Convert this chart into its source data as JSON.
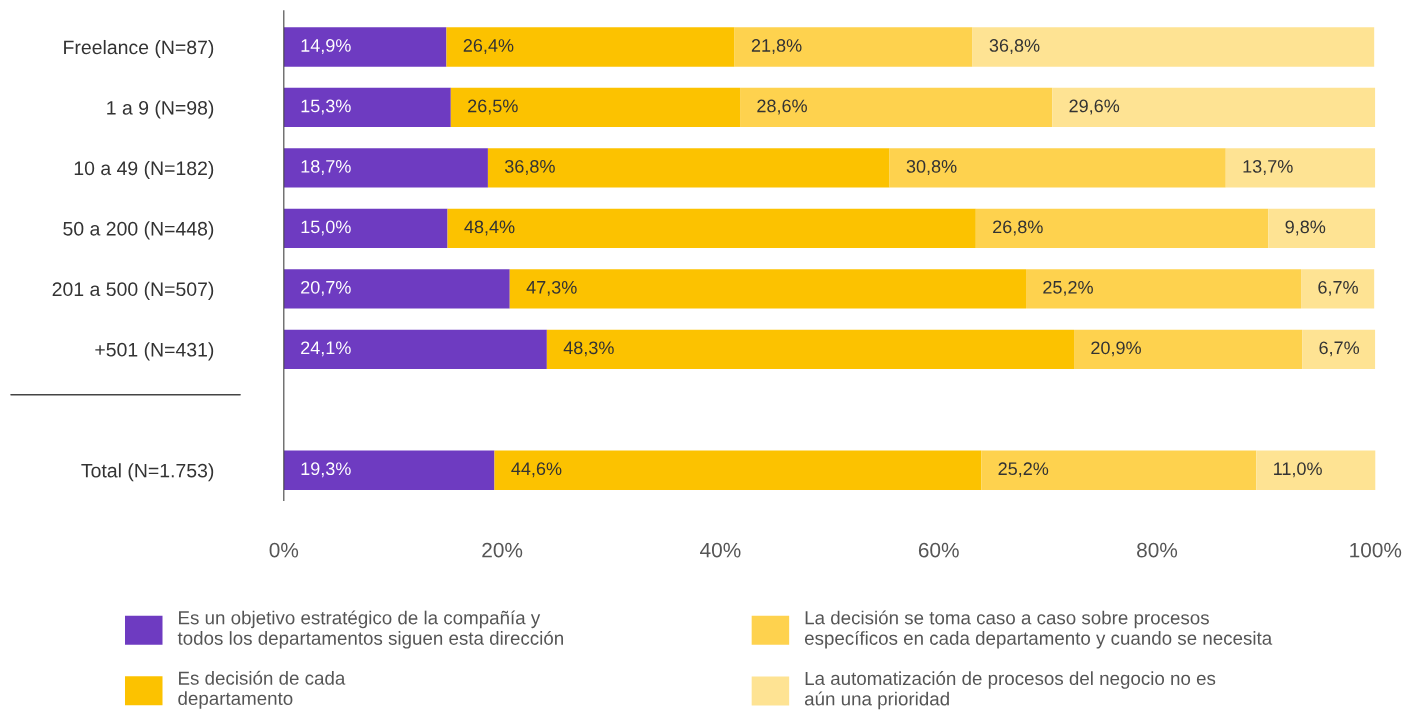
{
  "chart_data": {
    "type": "bar",
    "orientation": "horizontal",
    "stacked": true,
    "categories": [
      "Freelance (N=87)",
      "1 a 9 (N=98)",
      "10 a 49 (N=182)",
      "50 a 200 (N=448)",
      "201 a 500 (N=507)",
      "+501 (N=431)",
      null,
      "Total (N=1.753)"
    ],
    "series": [
      {
        "name": "Es un objetivo estratégico de la compañía y\ntodos los departamentos siguen esta dirección",
        "color": "#6e3bc1",
        "values": [
          14.9,
          15.3,
          18.7,
          15.0,
          20.7,
          24.1,
          null,
          19.3
        ],
        "value_labels": [
          "14,9%",
          "15,3%",
          "18,7%",
          "15,0%",
          "20,7%",
          "24,1%",
          null,
          "19,3%"
        ]
      },
      {
        "name": "Es decisión de cada\ndepartamento",
        "color": "#fcc200",
        "values": [
          26.4,
          26.5,
          36.8,
          48.4,
          47.3,
          48.3,
          null,
          44.6
        ],
        "value_labels": [
          "26,4%",
          "26,5%",
          "36,8%",
          "48,4%",
          "47,3%",
          "48,3%",
          null,
          "44,6%"
        ]
      },
      {
        "name": "La decisión se toma caso a caso sobre procesos\nespecíficos en cada departamento y cuando se necesita",
        "color": "#fed24e",
        "values": [
          21.8,
          28.6,
          30.8,
          26.8,
          25.2,
          20.9,
          null,
          25.2
        ],
        "value_labels": [
          "21,8%",
          "28,6%",
          "30,8%",
          "26,8%",
          "25,2%",
          "20,9%",
          null,
          "25,2%"
        ]
      },
      {
        "name": "La automatización de procesos del negocio no es\naún una prioridad",
        "color": "#fee393",
        "values": [
          36.8,
          29.6,
          13.7,
          9.8,
          6.7,
          6.7,
          null,
          11.0
        ],
        "value_labels": [
          "36,8%",
          "29,6%",
          "13,7%",
          "9,8%",
          "6,7%",
          "6,7%",
          null,
          "11,0%"
        ]
      }
    ],
    "xlim": [
      0,
      100
    ],
    "xticks": [
      {
        "value": 0,
        "label": "0%"
      },
      {
        "value": 20,
        "label": "20%"
      },
      {
        "value": 40,
        "label": "40%"
      },
      {
        "value": 60,
        "label": "60%"
      },
      {
        "value": 80,
        "label": "80%"
      },
      {
        "value": 100,
        "label": "100%"
      }
    ],
    "grid": false,
    "legend": "bottom"
  }
}
